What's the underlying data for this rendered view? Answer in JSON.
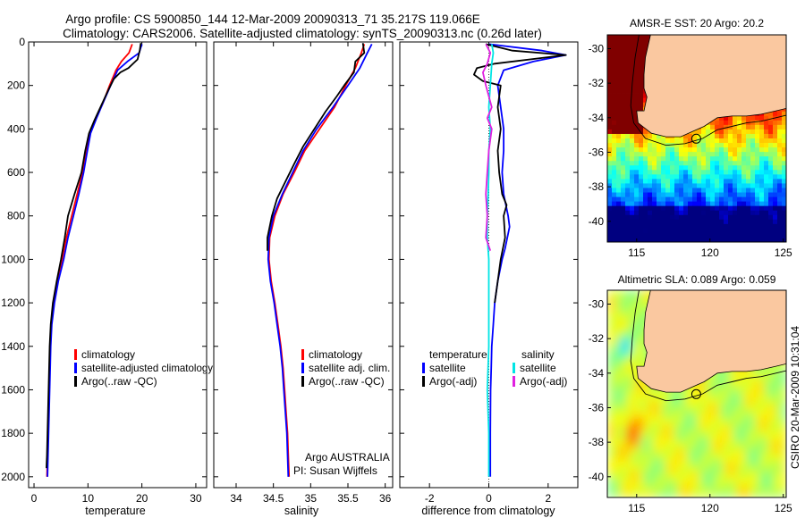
{
  "figure": {
    "title_line1": "Argo profile: CS 5900850_144 12-Mar-2009 20090313_71 35.217S 119.066E",
    "title_line2": "Climatology: CARS2006. Satellite-adjusted climatology: synTS_20090313.nc (0.26d later)",
    "credit": "CSIRO 20-Mar-2009 10:31:04",
    "agency_line1": "Argo AUSTRALIA",
    "agency_line2": "PI: Susan Wijffels"
  },
  "colors": {
    "climatology": "#ff0000",
    "satellite": "#0000ff",
    "argo": "#000000",
    "salinity_satellite": "#00e5e5",
    "salinity_argo": "#e020e0",
    "land": "#fac8a0"
  },
  "chart_data": [
    {
      "type": "line",
      "id": "temperature",
      "xlabel": "temperature",
      "ylabel": "",
      "xlim": [
        -1,
        32
      ],
      "ylim": [
        2050,
        0
      ],
      "xticks": [
        0,
        10,
        20,
        30
      ],
      "yticks": [
        0,
        200,
        400,
        600,
        800,
        1000,
        1200,
        1400,
        1600,
        1800,
        2000
      ],
      "legend": [
        "climatology",
        "satellite-adjusted climatology",
        "Argo(..raw -QC)"
      ],
      "series": [
        {
          "name": "climatology",
          "color": "#ff0000",
          "points": [
            [
              18.2,
              10
            ],
            [
              17.6,
              50
            ],
            [
              16.2,
              90
            ],
            [
              15.2,
              130
            ],
            [
              14,
              200
            ],
            [
              12.8,
              280
            ],
            [
              11.5,
              350
            ],
            [
              10.3,
              420
            ],
            [
              9.7,
              500
            ],
            [
              9,
              600
            ],
            [
              8,
              700
            ],
            [
              7,
              800
            ],
            [
              6,
              900
            ],
            [
              5.2,
              1000
            ],
            [
              4.3,
              1100
            ],
            [
              3.6,
              1200
            ],
            [
              3.2,
              1300
            ],
            [
              3,
              1400
            ],
            [
              2.9,
              1500
            ],
            [
              2.8,
              1600
            ],
            [
              2.7,
              1700
            ],
            [
              2.6,
              1800
            ],
            [
              2.5,
              1900
            ],
            [
              2.4,
              2000
            ]
          ]
        },
        {
          "name": "satellite-adjusted climatology",
          "color": "#0000ff",
          "points": [
            [
              20,
              10
            ],
            [
              19.5,
              50
            ],
            [
              17.3,
              90
            ],
            [
              15.5,
              130
            ],
            [
              14.2,
              200
            ],
            [
              12.8,
              280
            ],
            [
              11.6,
              350
            ],
            [
              10.5,
              420
            ],
            [
              9.9,
              500
            ],
            [
              9.2,
              600
            ],
            [
              8.3,
              700
            ],
            [
              7.3,
              800
            ],
            [
              6.3,
              900
            ],
            [
              5.5,
              1000
            ],
            [
              4.5,
              1100
            ],
            [
              3.8,
              1200
            ],
            [
              3.3,
              1300
            ],
            [
              3.1,
              1400
            ],
            [
              3,
              1500
            ],
            [
              2.9,
              1600
            ],
            [
              2.8,
              1700
            ],
            [
              2.7,
              1800
            ],
            [
              2.6,
              1900
            ],
            [
              2.5,
              2000
            ]
          ]
        },
        {
          "name": "Argo(..raw -QC)",
          "color": "#000000",
          "points": [
            [
              19.8,
              5
            ],
            [
              19.6,
              40
            ],
            [
              19.2,
              80
            ],
            [
              17.5,
              120
            ],
            [
              16,
              140
            ],
            [
              14.8,
              170
            ],
            [
              13.8,
              220
            ],
            [
              12.5,
              290
            ],
            [
              11.2,
              360
            ],
            [
              10.2,
              420
            ],
            [
              9.5,
              500
            ],
            [
              8.8,
              600
            ],
            [
              7.5,
              700
            ],
            [
              6.3,
              800
            ],
            [
              5.7,
              900
            ],
            [
              5,
              1000
            ],
            [
              4.2,
              1100
            ],
            [
              3.5,
              1200
            ],
            [
              3.1,
              1300
            ],
            [
              2.9,
              1400
            ],
            [
              2.8,
              1500
            ],
            [
              2.7,
              1600
            ],
            [
              2.6,
              1700
            ],
            [
              2.5,
              1800
            ],
            [
              2.4,
              1900
            ],
            [
              2.3,
              1960
            ]
          ]
        }
      ]
    },
    {
      "type": "line",
      "id": "salinity",
      "xlabel": "salinity",
      "ylabel": "",
      "xlim": [
        33.7,
        36.1
      ],
      "ylim": [
        2050,
        0
      ],
      "xticks": [
        34,
        34.5,
        35,
        35.5,
        36
      ],
      "yticks": [],
      "legend": [
        "climatology",
        "satellite adj. clim.",
        "Argo(..raw -QC)"
      ],
      "series": [
        {
          "name": "climatology",
          "color": "#ff0000",
          "points": [
            [
              35.72,
              10
            ],
            [
              35.68,
              50
            ],
            [
              35.6,
              120
            ],
            [
              35.47,
              200
            ],
            [
              35.32,
              300
            ],
            [
              35.12,
              400
            ],
            [
              34.92,
              500
            ],
            [
              34.78,
              600
            ],
            [
              34.63,
              700
            ],
            [
              34.52,
              800
            ],
            [
              34.45,
              900
            ],
            [
              34.44,
              1000
            ],
            [
              34.47,
              1100
            ],
            [
              34.52,
              1200
            ],
            [
              34.56,
              1300
            ],
            [
              34.6,
              1400
            ],
            [
              34.63,
              1500
            ],
            [
              34.65,
              1600
            ],
            [
              34.67,
              1700
            ],
            [
              34.69,
              1800
            ],
            [
              34.7,
              1900
            ],
            [
              34.71,
              2000
            ]
          ]
        },
        {
          "name": "satellite adj. clim.",
          "color": "#0000ff",
          "points": [
            [
              35.82,
              10
            ],
            [
              35.76,
              50
            ],
            [
              35.66,
              120
            ],
            [
              35.5,
              200
            ],
            [
              35.3,
              300
            ],
            [
              35.08,
              400
            ],
            [
              34.9,
              500
            ],
            [
              34.76,
              600
            ],
            [
              34.62,
              700
            ],
            [
              34.5,
              800
            ],
            [
              34.44,
              900
            ],
            [
              34.43,
              1000
            ],
            [
              34.46,
              1100
            ],
            [
              34.51,
              1200
            ],
            [
              34.55,
              1300
            ],
            [
              34.59,
              1400
            ],
            [
              34.62,
              1500
            ],
            [
              34.64,
              1600
            ],
            [
              34.66,
              1700
            ],
            [
              34.68,
              1800
            ],
            [
              34.69,
              1900
            ],
            [
              34.7,
              2000
            ]
          ]
        },
        {
          "name": "Argo(..raw -QC)",
          "color": "#000000",
          "points": [
            [
              35.7,
              5
            ],
            [
              35.72,
              50
            ],
            [
              35.6,
              90
            ],
            [
              35.58,
              140
            ],
            [
              35.45,
              200
            ],
            [
              35.35,
              250
            ],
            [
              35.2,
              320
            ],
            [
              35.05,
              400
            ],
            [
              34.9,
              480
            ],
            [
              34.78,
              560
            ],
            [
              34.65,
              650
            ],
            [
              34.55,
              720
            ],
            [
              34.48,
              800
            ],
            [
              34.42,
              900
            ],
            [
              34.42,
              960
            ]
          ]
        }
      ]
    },
    {
      "type": "line",
      "id": "difference",
      "xlabel": "difference from climatology",
      "ylabel": "",
      "xlim": [
        -3,
        3
      ],
      "ylim": [
        2050,
        0
      ],
      "xticks": [
        -2,
        0,
        2
      ],
      "yticks": [],
      "legend_left_title": "temperature",
      "legend_right_title": "salinity",
      "legend_left": [
        "satellite",
        "Argo(-adj)"
      ],
      "legend_right": [
        "satellite",
        "Argo(-adj)"
      ],
      "series": [
        {
          "name": "temperature satellite",
          "color": "#0000ff",
          "points": [
            [
              0,
              10
            ],
            [
              1.8,
              40
            ],
            [
              2.6,
              60
            ],
            [
              1.5,
              90
            ],
            [
              0.5,
              130
            ],
            [
              0.3,
              200
            ],
            [
              0.4,
              300
            ],
            [
              0.5,
              400
            ],
            [
              0.5,
              500
            ],
            [
              0.45,
              600
            ],
            [
              0.5,
              700
            ],
            [
              0.65,
              800
            ],
            [
              0.7,
              850
            ],
            [
              0.55,
              950
            ],
            [
              0.45,
              1000
            ],
            [
              0.3,
              1100
            ],
            [
              0.2,
              1200
            ],
            [
              0.15,
              1300
            ],
            [
              0.1,
              1400
            ],
            [
              0.08,
              1500
            ],
            [
              0.06,
              1600
            ],
            [
              0.05,
              1800
            ],
            [
              0.05,
              2000
            ]
          ]
        },
        {
          "name": "temperature Argo(-adj)",
          "color": "#000000",
          "points": [
            [
              -0.1,
              10
            ],
            [
              0.8,
              40
            ],
            [
              2.6,
              60
            ],
            [
              0.2,
              100
            ],
            [
              -0.4,
              120
            ],
            [
              -0.5,
              150
            ],
            [
              -0.2,
              180
            ],
            [
              0.4,
              200
            ],
            [
              0.3,
              300
            ],
            [
              0.4,
              400
            ],
            [
              0.3,
              500
            ],
            [
              0.35,
              600
            ],
            [
              0.45,
              700
            ],
            [
              0.6,
              750
            ],
            [
              0.5,
              800
            ],
            [
              0.55,
              900
            ],
            [
              0.4,
              1000
            ],
            [
              0.3,
              1100
            ],
            [
              0.2,
              1200
            ]
          ]
        },
        {
          "name": "salinity satellite",
          "color": "#00e5e5",
          "points": [
            [
              0.1,
              10
            ],
            [
              0.15,
              50
            ],
            [
              0.1,
              100
            ],
            [
              0.05,
              200
            ],
            [
              0,
              300
            ],
            [
              0.05,
              400
            ],
            [
              0,
              500
            ],
            [
              0,
              600
            ],
            [
              -0.02,
              700
            ],
            [
              -0.05,
              800
            ],
            [
              -0.05,
              900
            ],
            [
              0,
              1000
            ],
            [
              0,
              1200
            ],
            [
              0,
              1400
            ],
            [
              -0.05,
              1600
            ],
            [
              0,
              1800
            ],
            [
              0,
              2000
            ]
          ]
        },
        {
          "name": "salinity Argo(-adj)",
          "color": "#e020e0",
          "points": [
            [
              -0.1,
              10
            ],
            [
              0.05,
              50
            ],
            [
              -0.05,
              100
            ],
            [
              -0.2,
              140
            ],
            [
              -0.1,
              200
            ],
            [
              0.1,
              300
            ],
            [
              -0.05,
              350
            ],
            [
              0.1,
              400
            ],
            [
              0,
              500
            ],
            [
              -0.05,
              600
            ],
            [
              -0.1,
              700
            ],
            [
              -0.05,
              800
            ],
            [
              -0.1,
              900
            ],
            [
              0.05,
              960
            ]
          ]
        }
      ]
    },
    {
      "type": "heatmap",
      "id": "sst_map",
      "title": "AMSR-E SST: 20 Argo: 20.2",
      "xticks": [
        115,
        120,
        125
      ],
      "yticks": [
        -30,
        -32,
        -34,
        -36,
        -38,
        -40
      ],
      "xlim": [
        113,
        125.2
      ],
      "ylim": [
        -41.2,
        -29.2
      ],
      "profile_location": [
        119.066,
        -35.217
      ]
    },
    {
      "type": "heatmap",
      "id": "sla_map",
      "title": "Altimetric SLA: 0.089 Argo: 0.059",
      "xticks": [
        115,
        120,
        125
      ],
      "yticks": [
        -30,
        -32,
        -34,
        -36,
        -38,
        -40
      ],
      "xlim": [
        113,
        125.2
      ],
      "ylim": [
        -41.2,
        -29.2
      ],
      "profile_location": [
        119.066,
        -35.217
      ]
    }
  ]
}
